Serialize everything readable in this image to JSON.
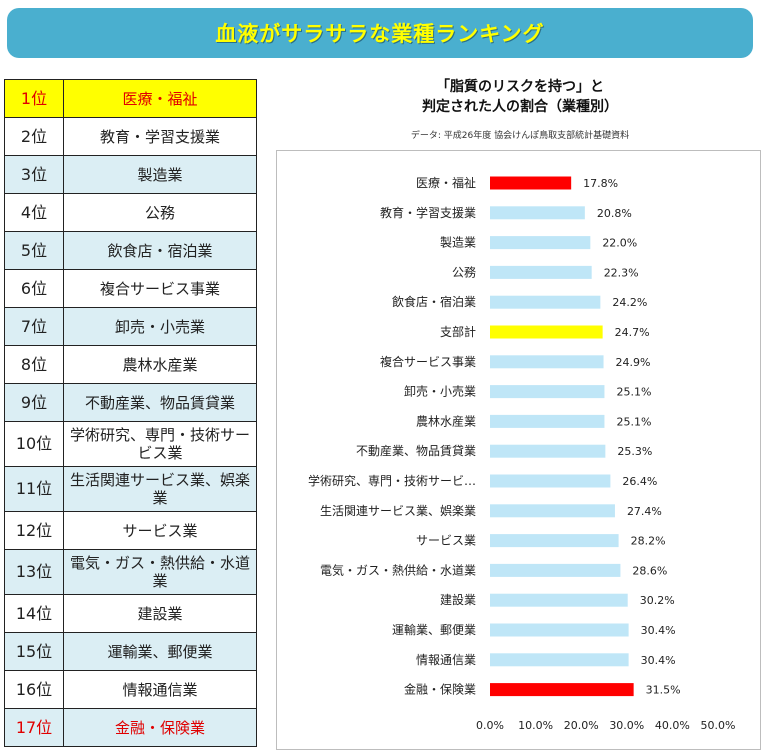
{
  "banner": {
    "title": "血液がサラサラな業種ランキング"
  },
  "ranking": [
    {
      "rank": "1位",
      "industry": "医療・福祉",
      "bg": "#ffff00",
      "text_color": "#e00000"
    },
    {
      "rank": "2位",
      "industry": "教育・学習支援業",
      "bg": "#ffffff",
      "text_color": "#222222"
    },
    {
      "rank": "3位",
      "industry": "製造業",
      "bg": "#dbeef4",
      "text_color": "#222222"
    },
    {
      "rank": "4位",
      "industry": "公務",
      "bg": "#ffffff",
      "text_color": "#222222"
    },
    {
      "rank": "5位",
      "industry": "飲食店・宿泊業",
      "bg": "#dbeef4",
      "text_color": "#222222"
    },
    {
      "rank": "6位",
      "industry": "複合サービス事業",
      "bg": "#ffffff",
      "text_color": "#222222"
    },
    {
      "rank": "7位",
      "industry": "卸売・小売業",
      "bg": "#dbeef4",
      "text_color": "#222222"
    },
    {
      "rank": "8位",
      "industry": "農林水産業",
      "bg": "#ffffff",
      "text_color": "#222222"
    },
    {
      "rank": "9位",
      "industry": "不動産業、物品賃貸業",
      "bg": "#dbeef4",
      "text_color": "#222222"
    },
    {
      "rank": "10位",
      "industry": "学術研究、専門・技術サービス業",
      "bg": "#ffffff",
      "text_color": "#222222"
    },
    {
      "rank": "11位",
      "industry": "生活関連サービス業、娯楽業",
      "bg": "#dbeef4",
      "text_color": "#222222"
    },
    {
      "rank": "12位",
      "industry": "サービス業",
      "bg": "#ffffff",
      "text_color": "#222222"
    },
    {
      "rank": "13位",
      "industry": "電気・ガス・熱供給・水道業",
      "bg": "#dbeef4",
      "text_color": "#222222"
    },
    {
      "rank": "14位",
      "industry": "建設業",
      "bg": "#ffffff",
      "text_color": "#222222"
    },
    {
      "rank": "15位",
      "industry": "運輸業、郵便業",
      "bg": "#dbeef4",
      "text_color": "#222222"
    },
    {
      "rank": "16位",
      "industry": "情報通信業",
      "bg": "#ffffff",
      "text_color": "#222222"
    },
    {
      "rank": "17位",
      "industry": "金融・保険業",
      "bg": "#dbeef4",
      "text_color": "#e00000"
    }
  ],
  "chart_data": {
    "type": "bar",
    "orientation": "horizontal",
    "title_line1": "「脂質のリスクを持つ」と",
    "title_line2": "判定された人の割合（業種別）",
    "source": "データ: 平成26年度 協会けんぽ鳥取支部統計基礎資料",
    "categories": [
      "医療・福祉",
      "教育・学習支援業",
      "製造業",
      "公務",
      "飲食店・宿泊業",
      "支部計",
      "複合サービス事業",
      "卸売・小売業",
      "農林水産業",
      "不動産業、物品賃貸業",
      "学術研究、専門・技術サービ…",
      "生活関連サービス業、娯楽業",
      "サービス業",
      "電気・ガス・熱供給・水道業",
      "建設業",
      "運輸業、郵便業",
      "情報通信業",
      "金融・保険業"
    ],
    "values": [
      17.8,
      20.8,
      22.0,
      22.3,
      24.2,
      24.7,
      24.9,
      25.1,
      25.1,
      25.3,
      26.4,
      27.4,
      28.2,
      28.6,
      30.2,
      30.4,
      30.4,
      31.5
    ],
    "value_labels": [
      "17.8%",
      "20.8%",
      "22.0%",
      "22.3%",
      "24.2%",
      "24.7%",
      "24.9%",
      "25.1%",
      "25.1%",
      "25.3%",
      "26.4%",
      "27.4%",
      "28.2%",
      "28.6%",
      "30.2%",
      "30.4%",
      "30.4%",
      "31.5%"
    ],
    "bar_colors": [
      "#ff0000",
      "#bfe6f7",
      "#bfe6f7",
      "#bfe6f7",
      "#bfe6f7",
      "#ffff00",
      "#bfe6f7",
      "#bfe6f7",
      "#bfe6f7",
      "#bfe6f7",
      "#bfe6f7",
      "#bfe6f7",
      "#bfe6f7",
      "#bfe6f7",
      "#bfe6f7",
      "#bfe6f7",
      "#bfe6f7",
      "#ff0000"
    ],
    "xlim": [
      0,
      50
    ],
    "xticks": [
      "0.0%",
      "10.0%",
      "20.0%",
      "30.0%",
      "40.0%",
      "50.0%"
    ],
    "grid": false,
    "legend": "none"
  }
}
